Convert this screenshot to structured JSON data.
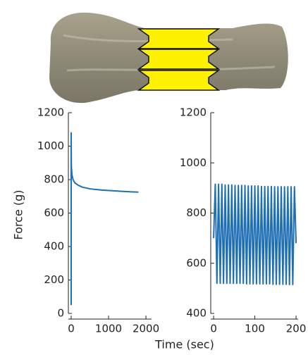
{
  "chart_data": [
    {
      "type": "line",
      "ylabel": "Force (g)",
      "x": [
        0,
        0,
        5,
        20,
        50,
        100,
        200,
        300,
        500,
        800,
        1200,
        1600,
        1800
      ],
      "series": [
        {
          "color": "#1f6fb4",
          "values": [
            50,
            1080,
            880,
            830,
            800,
            780,
            765,
            755,
            745,
            738,
            732,
            727,
            725
          ]
        }
      ],
      "xlim": [
        -75,
        2150
      ],
      "xticks": [
        0,
        1000,
        2000
      ],
      "ylim": [
        0,
        1200
      ],
      "yticks": [
        0,
        200,
        400,
        600,
        800,
        1000,
        1200
      ]
    },
    {
      "type": "line",
      "xlabel": "Time (sec)",
      "x": [
        0,
        4,
        8,
        12,
        16,
        20,
        24,
        28,
        32,
        36,
        40,
        44,
        48,
        52,
        56,
        60,
        64,
        68,
        72,
        76,
        80,
        84,
        88,
        92,
        96,
        100,
        104,
        108,
        112,
        116,
        120,
        124,
        128,
        132,
        136,
        140,
        144,
        148,
        152,
        156,
        160,
        164,
        168,
        172,
        176,
        180,
        184,
        188,
        192,
        196,
        200
      ],
      "series": [
        {
          "color": "#1f6fb4",
          "values": [
            700,
            915,
            520,
            915,
            520,
            915,
            520,
            912,
            520,
            912,
            520,
            912,
            520,
            910,
            520,
            910,
            520,
            910,
            520,
            910,
            518,
            908,
            518,
            908,
            518,
            908,
            518,
            908,
            518,
            906,
            518,
            906,
            518,
            906,
            518,
            906,
            516,
            905,
            516,
            905,
            516,
            905,
            516,
            905,
            516,
            905,
            515,
            905,
            515,
            905,
            680
          ]
        }
      ],
      "xlim": [
        -7,
        205
      ],
      "xticks": [
        0,
        100,
        200
      ],
      "ylim": [
        400,
        1200
      ],
      "yticks": [
        400,
        600,
        800,
        1000,
        1200
      ]
    }
  ]
}
